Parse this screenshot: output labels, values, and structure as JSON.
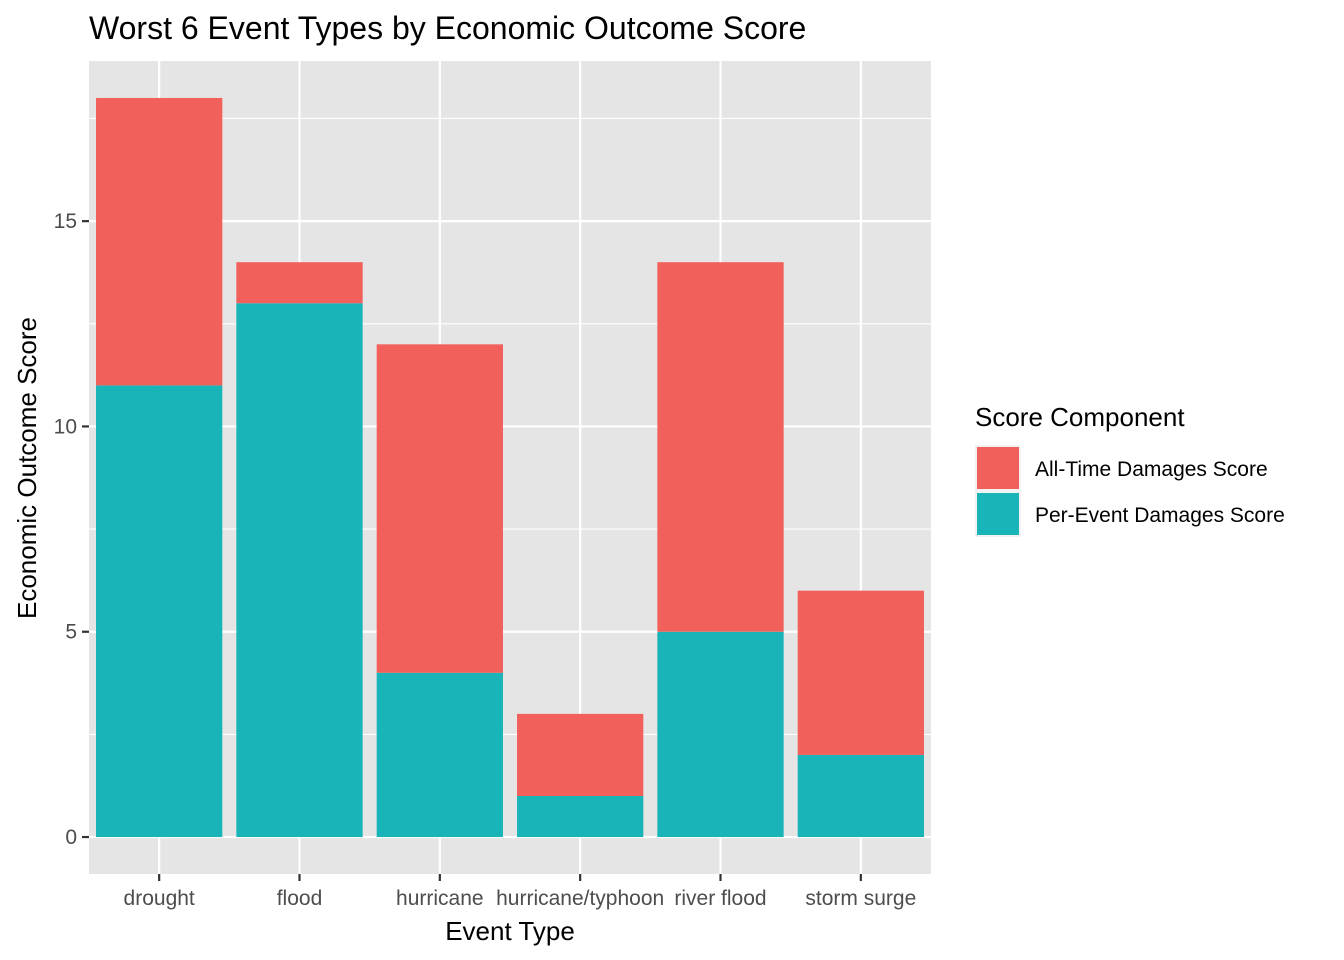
{
  "chart_data": {
    "type": "bar",
    "stacked": true,
    "title": "Worst 6 Event Types by Economic Outcome Score",
    "xlabel": "Event Type",
    "ylabel": "Economic Outcome Score",
    "categories": [
      "drought",
      "flood",
      "hurricane",
      "hurricane/typhoon",
      "river flood",
      "storm surge"
    ],
    "series": [
      {
        "name": "Per-Event Damages Score",
        "values": [
          11,
          13,
          4,
          1,
          5,
          2
        ],
        "color": "#19B4B8"
      },
      {
        "name": "All-Time Damages Score",
        "values": [
          7,
          1,
          8,
          2,
          9,
          4
        ],
        "color": "#F2605B"
      }
    ],
    "ylim": [
      -0.9,
      18.9
    ],
    "yticks": [
      0,
      5,
      10,
      15
    ],
    "grid": true,
    "legend": {
      "title": "Score Component",
      "position": "right",
      "items": [
        "All-Time Damages Score",
        "Per-Event Damages Score"
      ]
    },
    "panel_color": "#E5E5E5"
  }
}
